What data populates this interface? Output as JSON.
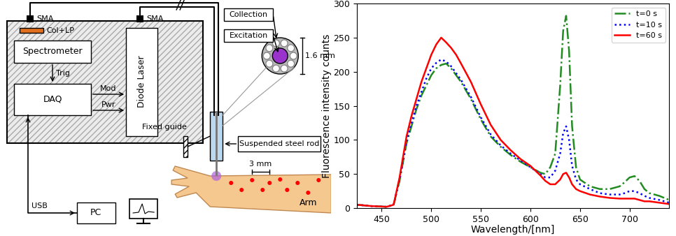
{
  "diagram": {
    "nodes": [
      {
        "label": "SMA"
      },
      {
        "label": "SMA"
      },
      {
        "label": "Col+LP"
      },
      {
        "label": "Spectrometer"
      },
      {
        "label": "Diode Laser"
      },
      {
        "label": "Trig"
      },
      {
        "label": "DAQ"
      },
      {
        "label": "Mod"
      },
      {
        "label": "Pwr"
      },
      {
        "label": "USB"
      },
      {
        "label": "PC"
      },
      {
        "label": "Collection"
      },
      {
        "label": "Excitation"
      },
      {
        "label": "1.6 mm"
      },
      {
        "label": "Fixed guide"
      },
      {
        "label": "Suspended steel rod"
      },
      {
        "label": "3 mm"
      },
      {
        "label": "Arm"
      }
    ]
  },
  "chart_data": {
    "type": "line",
    "xlabel": "Wavelength/[nm]",
    "ylabel": "Fluorescence intensity counts",
    "x": [
      425,
      440,
      455,
      462,
      468,
      475,
      480,
      485,
      490,
      495,
      500,
      505,
      510,
      515,
      520,
      525,
      530,
      540,
      550,
      560,
      570,
      580,
      590,
      600,
      610,
      615,
      620,
      625,
      630,
      633,
      636,
      639,
      642,
      646,
      650,
      660,
      670,
      680,
      690,
      695,
      700,
      705,
      710,
      715,
      720,
      730,
      740
    ],
    "series": [
      {
        "name": "t=0 s",
        "color": "#228b22",
        "line_style": "dashdot",
        "values": [
          5,
          3,
          2,
          5,
          40,
          95,
          120,
          145,
          165,
          180,
          195,
          205,
          210,
          212,
          205,
          195,
          185,
          160,
          130,
          105,
          90,
          78,
          68,
          60,
          52,
          50,
          60,
          80,
          180,
          260,
          282,
          230,
          120,
          60,
          42,
          32,
          28,
          28,
          32,
          38,
          45,
          47,
          40,
          28,
          22,
          18,
          12
        ]
      },
      {
        "name": "t=10 s",
        "color": "#0000ff",
        "line_style": "dotted",
        "values": [
          5,
          3,
          2,
          5,
          42,
          98,
          125,
          150,
          170,
          190,
          205,
          213,
          218,
          215,
          208,
          198,
          188,
          163,
          133,
          108,
          92,
          80,
          70,
          60,
          50,
          45,
          45,
          55,
          80,
          110,
          120,
          100,
          62,
          42,
          35,
          28,
          22,
          20,
          20,
          22,
          25,
          25,
          22,
          18,
          15,
          12,
          8
        ]
      },
      {
        "name": "t=60 s",
        "color": "#ff0000",
        "line_style": "solid",
        "values": [
          5,
          3,
          2,
          5,
          45,
          105,
          135,
          160,
          185,
          205,
          225,
          240,
          250,
          243,
          235,
          225,
          212,
          185,
          152,
          122,
          100,
          85,
          72,
          62,
          48,
          40,
          35,
          35,
          42,
          50,
          52,
          45,
          35,
          28,
          25,
          20,
          17,
          15,
          14,
          14,
          14,
          14,
          12,
          10,
          10,
          8,
          6
        ]
      }
    ],
    "xlim": [
      425,
      740
    ],
    "ylim": [
      0,
      300
    ],
    "xticks": [
      450,
      500,
      550,
      600,
      650,
      700
    ],
    "yticks": [
      0,
      50,
      100,
      150,
      200,
      250,
      300
    ],
    "legend": "upper right",
    "grid": false
  }
}
